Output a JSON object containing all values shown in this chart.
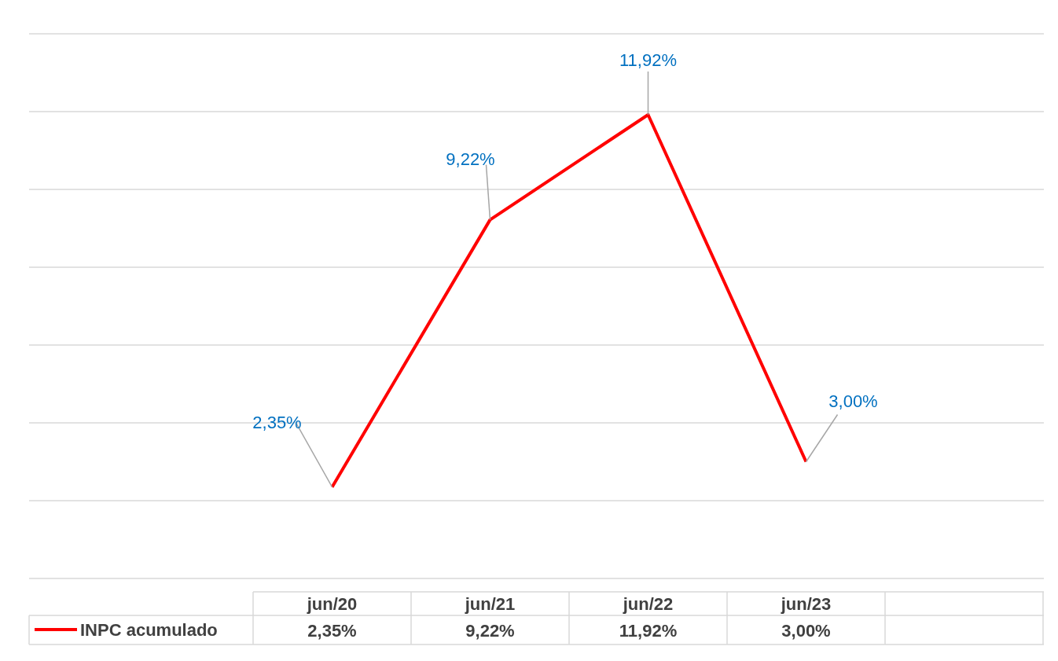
{
  "chart_data": {
    "type": "line",
    "categories": [
      "jun/20",
      "jun/21",
      "jun/22",
      "jun/23"
    ],
    "series": [
      {
        "name": "INPC acumulado",
        "color": "#ff0000",
        "values": [
          2.35,
          9.22,
          11.92,
          3.0
        ],
        "value_labels": [
          "2,35%",
          "9,22%",
          "11,92%",
          "3,00%"
        ]
      }
    ],
    "ylim": [
      0,
      14
    ],
    "yticks": [
      {
        "value": 0,
        "label": null
      },
      {
        "value": 2,
        "label": null
      },
      {
        "value": 4,
        "label": null
      },
      {
        "value": 6,
        "label": null
      },
      {
        "value": 8,
        "label": null
      },
      {
        "value": 10,
        "label": null
      },
      {
        "value": 12,
        "label": null
      },
      {
        "value": 14,
        "label": null
      }
    ],
    "tick_labels": "x",
    "grid": "y",
    "legend": "bottom",
    "marker": "none",
    "line_style": "solid"
  }
}
